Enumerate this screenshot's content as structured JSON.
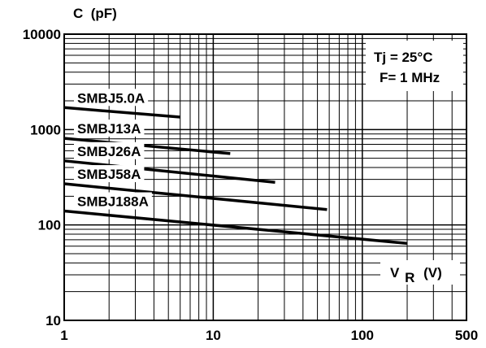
{
  "chart_data": {
    "type": "line",
    "y_axis_title": "C  (pF)",
    "x_axis_label_main": "V",
    "x_axis_label_sub": "R",
    "x_axis_label_unit": "(V)",
    "x_scale": "log",
    "y_scale": "log",
    "xlim": [
      1,
      500
    ],
    "ylim": [
      10,
      10000
    ],
    "x_ticks": [
      {
        "value": 1,
        "label": "1"
      },
      {
        "value": 10,
        "label": "10"
      },
      {
        "value": 100,
        "label": "100"
      },
      {
        "value": 500,
        "label": "500"
      }
    ],
    "y_ticks": [
      {
        "value": 10,
        "label": "10"
      },
      {
        "value": 100,
        "label": "100"
      },
      {
        "value": 1000,
        "label": "1000"
      },
      {
        "value": 10000,
        "label": "10000"
      }
    ],
    "grid": true,
    "annotation_lines": [
      "Tj = 25°C",
      "F= 1 MHz"
    ],
    "series": [
      {
        "name": "SMBJ5.0A",
        "x": [
          1,
          6
        ],
        "y": [
          1700,
          1350
        ]
      },
      {
        "name": "SMBJ13A",
        "x": [
          1,
          13
        ],
        "y": [
          810,
          560
        ]
      },
      {
        "name": "SMBJ26A",
        "x": [
          1,
          26
        ],
        "y": [
          470,
          280
        ]
      },
      {
        "name": "SMBJ58A",
        "x": [
          1,
          58
        ],
        "y": [
          270,
          145
        ]
      },
      {
        "name": "SMBJ188A",
        "x": [
          1,
          200
        ],
        "y": [
          140,
          64
        ]
      }
    ],
    "series_color": "#000000"
  }
}
